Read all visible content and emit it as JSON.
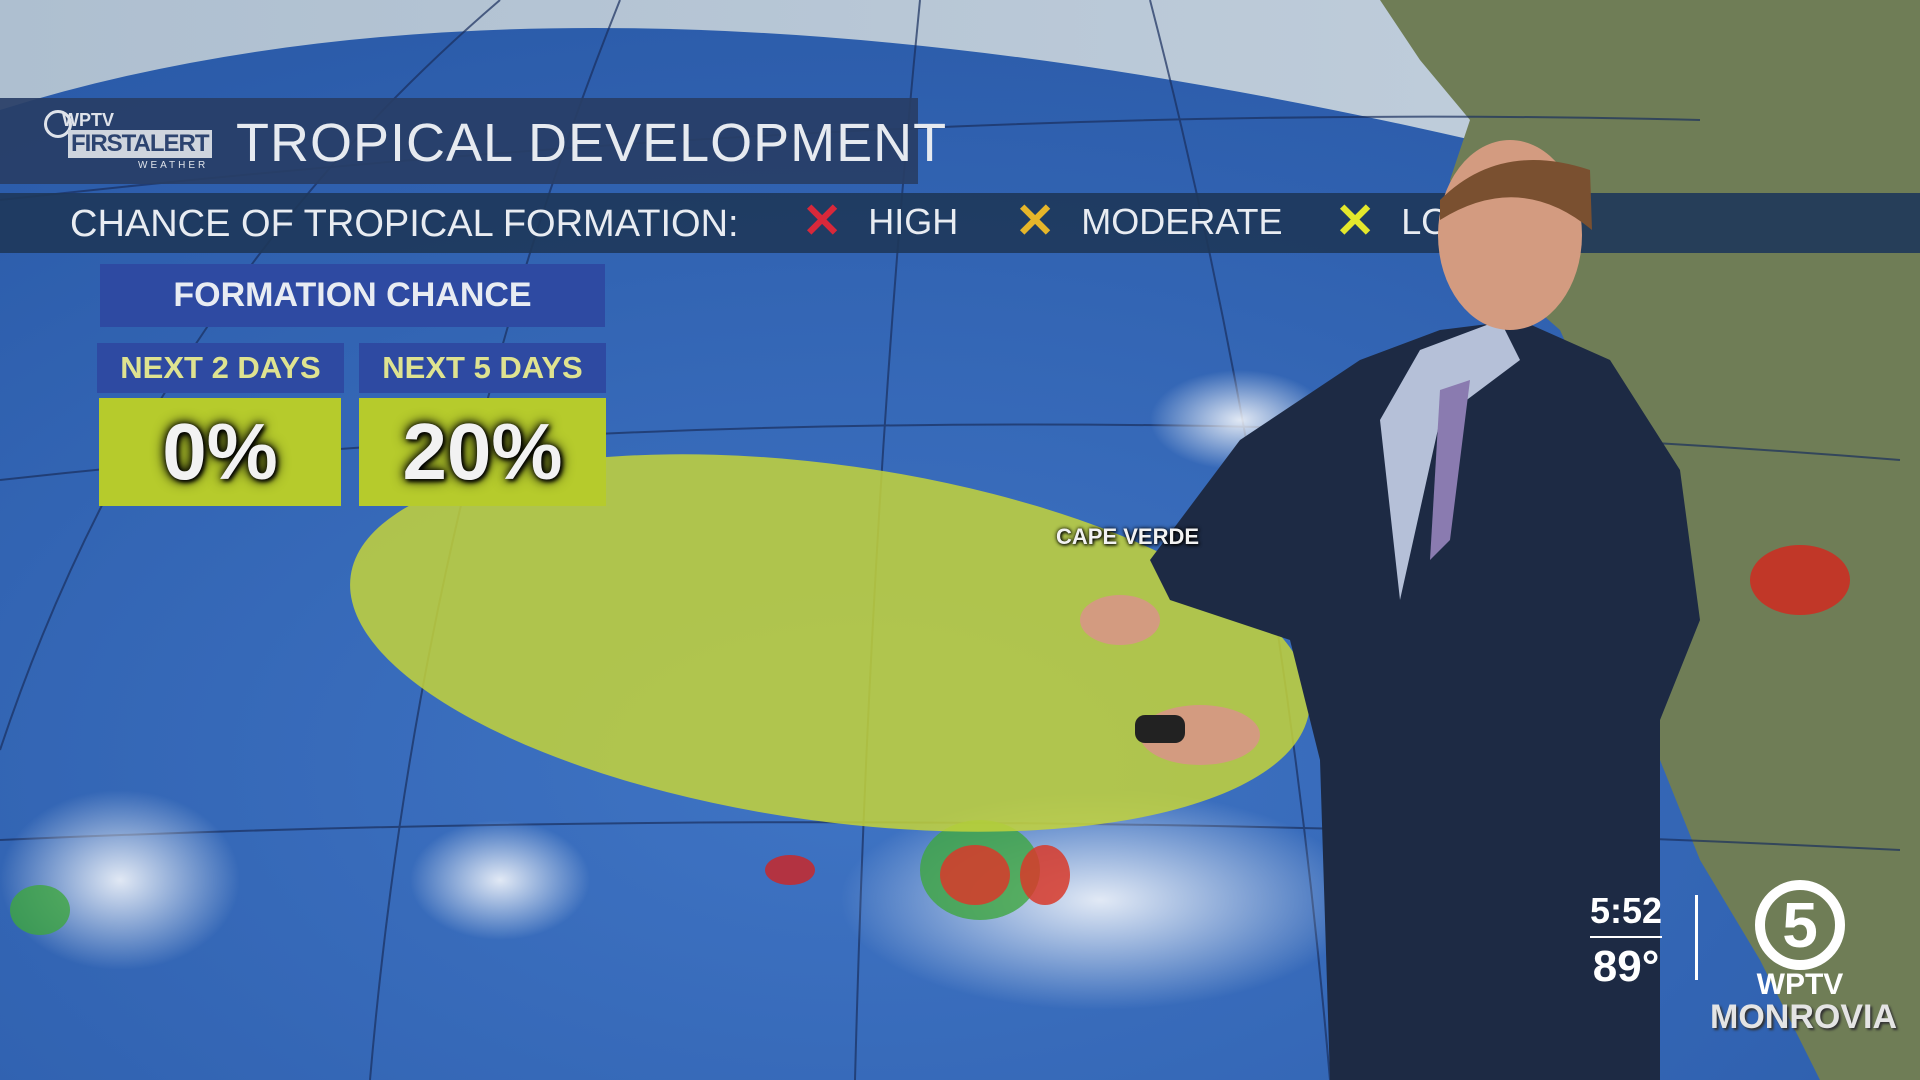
{
  "header": {
    "title": "TROPICAL DEVELOPMENT",
    "logo": {
      "station": "WPTV",
      "brand": "FIRSTALERT",
      "sub": "WEATHER",
      "channel": "5"
    }
  },
  "legend": {
    "label": "CHANCE OF TROPICAL FORMATION:",
    "items": [
      {
        "label": "HIGH",
        "color": "#d8283a",
        "icon": "x-mark-icon"
      },
      {
        "label": "MODERATE",
        "color": "#e6b62a",
        "icon": "x-mark-icon"
      },
      {
        "label": "LOW",
        "color": "#e4e82c",
        "icon": "x-mark-icon"
      }
    ]
  },
  "formation": {
    "title": "FORMATION CHANCE",
    "periods": [
      {
        "label": "NEXT 2 DAYS",
        "value": "0%"
      },
      {
        "label": "NEXT 5 DAYS",
        "value": "20%"
      }
    ],
    "area_color": "#c4d43a"
  },
  "map": {
    "labels": [
      "CAPE VERDE"
    ]
  },
  "ticker": {
    "time": "5:52",
    "temp": "89°"
  },
  "station": {
    "channel": "5",
    "call": "WPTV",
    "city": "MONROVIA"
  }
}
